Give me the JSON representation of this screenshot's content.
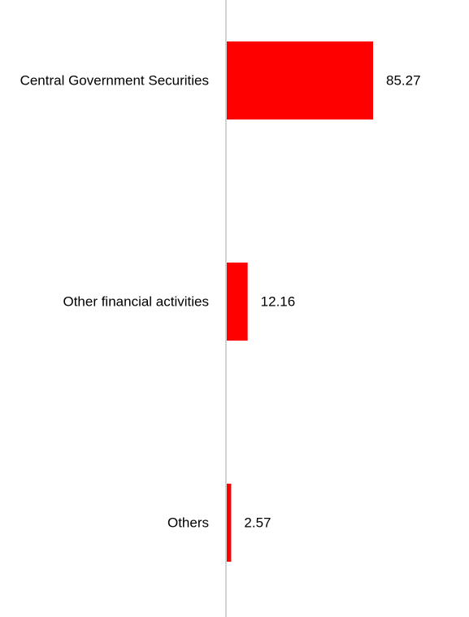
{
  "chart_data": {
    "type": "bar",
    "orientation": "horizontal",
    "categories": [
      "Central Government Securities",
      "Other financial activities",
      "Others"
    ],
    "values": [
      85.27,
      12.16,
      2.57
    ],
    "value_labels": [
      "85.27",
      "12.16",
      "2.57"
    ],
    "title": "",
    "xlabel": "",
    "ylabel": "",
    "xlim": [
      0,
      100
    ],
    "grid": false,
    "legend": "none",
    "colors": {
      "bar": "#ff0000",
      "axis": "#d3d3d3",
      "text": "#000000"
    }
  }
}
